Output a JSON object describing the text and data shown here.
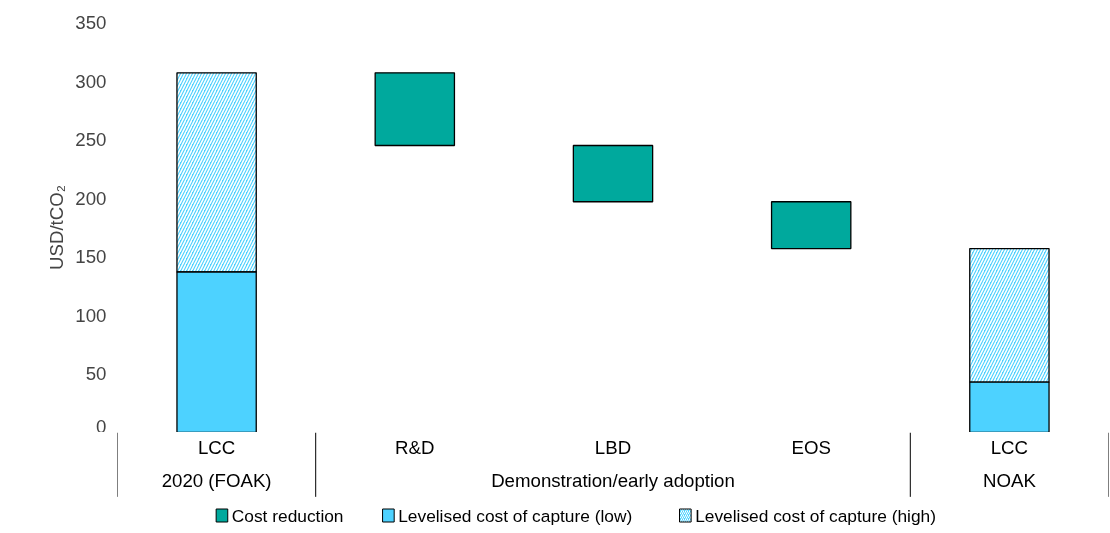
{
  "chart_data": {
    "type": "bar",
    "ylabel": "USD/tCO₂",
    "categories": [
      "LCC",
      "R&D",
      "LBD",
      "EOS",
      "LCC"
    ],
    "stacked": true,
    "series": [
      {
        "name": "Cost reduction",
        "color": "#00a99d",
        "values": [
          null,
          62,
          48,
          40,
          null
        ],
        "base": [
          null,
          245,
          197,
          157,
          null
        ]
      },
      {
        "name": "Levelised cost of capture (low)",
        "color": "#4dd2ff",
        "values": [
          137,
          null,
          null,
          null,
          43
        ]
      },
      {
        "name": "Levelised cost of capture (high)",
        "color": "#4dd2ff",
        "values": [
          170,
          null,
          null,
          null,
          114
        ]
      }
    ],
    "annotations": [
      "2020 (FOAK)",
      "Demonstration/early adoption",
      "NOAK"
    ],
    "ylim": [
      0,
      350
    ],
    "yticks": [
      0,
      50,
      100,
      150,
      200,
      250,
      300,
      350
    ],
    "grid": false,
    "legend": "bottom"
  }
}
